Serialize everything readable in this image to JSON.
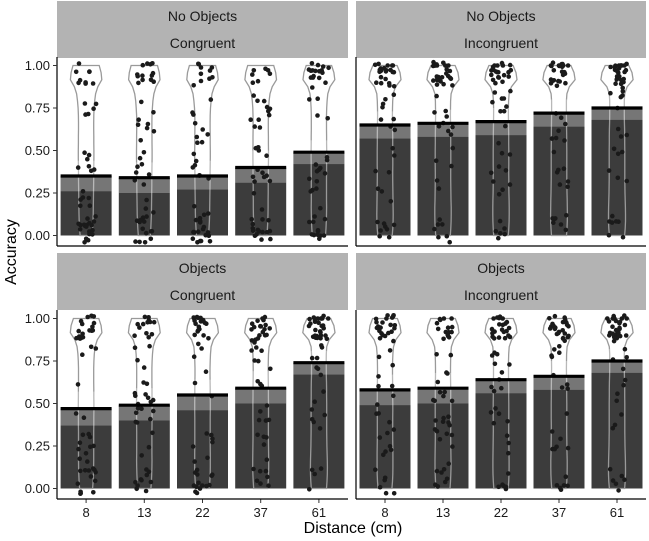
{
  "chart_data": {
    "type": "bar",
    "xlabel": "Distance (cm)",
    "ylabel": "Accuracy",
    "categories": [
      "8",
      "13",
      "22",
      "37",
      "61"
    ],
    "ylim": [
      -0.05,
      1.05
    ],
    "yticks": [
      "0.00",
      "0.25",
      "0.50",
      "0.75",
      "1.00"
    ],
    "grid": false,
    "panels": [
      {
        "strip_top": "No Objects",
        "strip_bottom": "Congruent",
        "values": [
          0.35,
          0.34,
          0.35,
          0.4,
          0.49
        ],
        "ci_low": [
          0.26,
          0.25,
          0.27,
          0.31,
          0.42
        ],
        "ci_high": [
          0.44,
          0.43,
          0.44,
          0.5,
          0.56
        ]
      },
      {
        "strip_top": "No Objects",
        "strip_bottom": "Incongruent",
        "values": [
          0.65,
          0.66,
          0.67,
          0.72,
          0.75
        ],
        "ci_low": [
          0.57,
          0.58,
          0.59,
          0.64,
          0.68
        ],
        "ci_high": [
          0.73,
          0.74,
          0.75,
          0.8,
          0.82
        ]
      },
      {
        "strip_top": "Objects",
        "strip_bottom": "Congruent",
        "values": [
          0.47,
          0.49,
          0.55,
          0.59,
          0.74
        ],
        "ci_low": [
          0.37,
          0.4,
          0.46,
          0.5,
          0.67
        ],
        "ci_high": [
          0.57,
          0.59,
          0.64,
          0.69,
          0.81
        ]
      },
      {
        "strip_top": "Objects",
        "strip_bottom": "Incongruent",
        "values": [
          0.58,
          0.59,
          0.64,
          0.66,
          0.75
        ],
        "ci_low": [
          0.49,
          0.5,
          0.56,
          0.58,
          0.68
        ],
        "ci_high": [
          0.67,
          0.68,
          0.73,
          0.75,
          0.82
        ]
      }
    ]
  }
}
